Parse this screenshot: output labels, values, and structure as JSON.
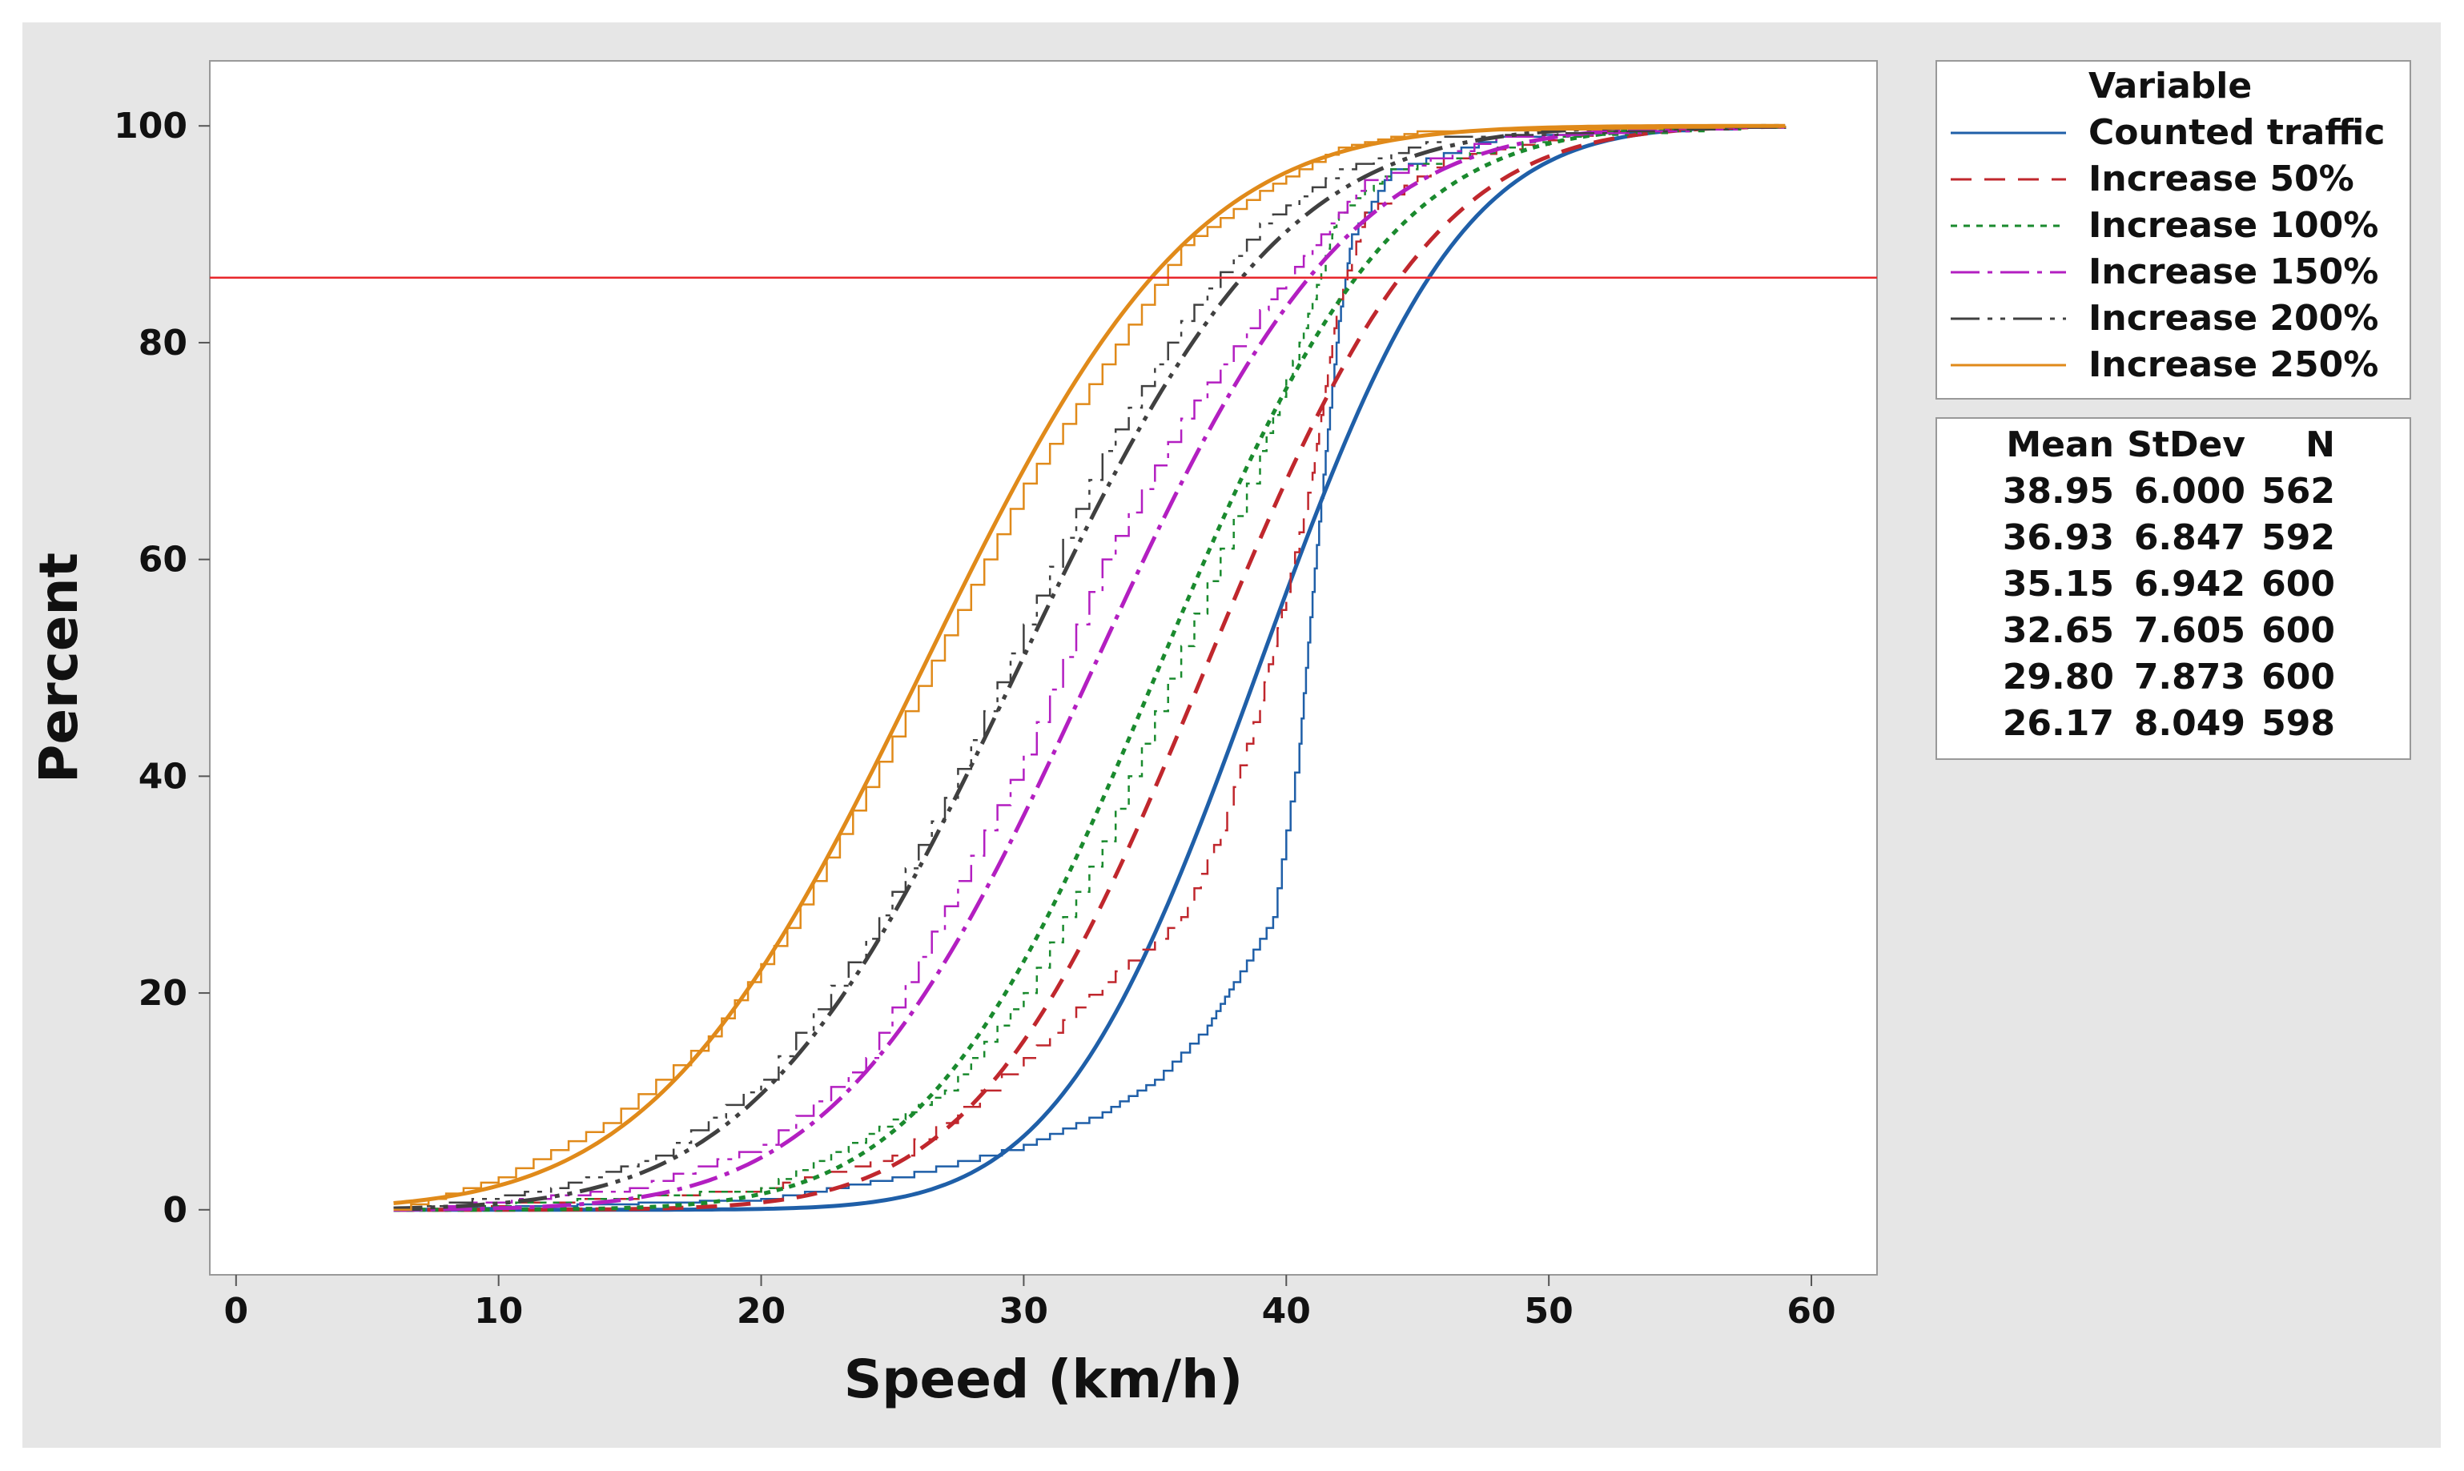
{
  "chart_data": {
    "type": "line",
    "subtype": "empirical cumulative distribution",
    "title": "",
    "xlabel": "Speed (km/h)",
    "ylabel": "Percent",
    "xlim": [
      -1,
      62.5
    ],
    "ylim": [
      -6,
      106
    ],
    "x_ticks": [
      0,
      10,
      20,
      30,
      40,
      50,
      60
    ],
    "y_ticks": [
      0,
      20,
      40,
      60,
      80,
      100
    ],
    "reference_line": {
      "y": 86,
      "color": "#e8262b"
    },
    "legend": {
      "title": "Variable",
      "placement": "top-right, outside plot",
      "entries": [
        "Counted traffic",
        "Increase 50%",
        "Increase 100%",
        "Increase 150%",
        "Increase 200%",
        "Increase 250%"
      ]
    },
    "stats_table": {
      "headers": [
        "Mean",
        "StDev",
        "N"
      ],
      "rows": [
        [
          "38.95",
          "6.000",
          "562"
        ],
        [
          "36.93",
          "6.847",
          "592"
        ],
        [
          "35.15",
          "6.942",
          "600"
        ],
        [
          "32.65",
          "7.605",
          "600"
        ],
        [
          "29.80",
          "7.873",
          "600"
        ],
        [
          "26.17",
          "8.049",
          "598"
        ]
      ]
    },
    "series": [
      {
        "name": "Counted traffic",
        "color": "#1f5fa8",
        "dash": "",
        "mean": 38.95,
        "sd": 6.0,
        "n": 562,
        "empirical_points": [
          [
            6,
            0
          ],
          [
            20,
            1
          ],
          [
            25,
            3
          ],
          [
            30,
            6
          ],
          [
            33,
            9
          ],
          [
            35,
            12
          ],
          [
            37,
            17
          ],
          [
            38,
            21
          ],
          [
            39.5,
            27
          ],
          [
            40.5,
            43
          ],
          [
            41,
            57
          ],
          [
            41.5,
            70
          ],
          [
            42,
            82
          ],
          [
            42.5,
            90
          ],
          [
            44,
            96
          ],
          [
            48,
            99
          ],
          [
            59,
            100
          ]
        ]
      },
      {
        "name": "Increase 50%",
        "color": "#c0272d",
        "dash": "26,16",
        "mean": 36.93,
        "sd": 6.847,
        "n": 592,
        "empirical_points": [
          [
            6,
            0
          ],
          [
            20,
            2
          ],
          [
            25,
            5
          ],
          [
            30,
            14
          ],
          [
            33,
            21
          ],
          [
            36,
            27
          ],
          [
            37.5,
            35
          ],
          [
            39,
            47
          ],
          [
            40,
            57
          ],
          [
            41,
            68
          ],
          [
            41.5,
            76
          ],
          [
            42,
            84
          ],
          [
            43,
            92
          ],
          [
            46,
            97
          ],
          [
            52,
            99.5
          ],
          [
            59,
            100
          ]
        ]
      },
      {
        "name": "Increase 100%",
        "color": "#1a8a2e",
        "dash": "8,8",
        "mean": 35.15,
        "sd": 6.942,
        "n": 600,
        "empirical_points": [
          [
            6,
            0
          ],
          [
            20,
            2
          ],
          [
            24,
            7
          ],
          [
            27,
            11
          ],
          [
            30,
            20
          ],
          [
            33,
            34
          ],
          [
            36,
            52
          ],
          [
            39,
            70
          ],
          [
            40.5,
            80
          ],
          [
            41.5,
            88
          ],
          [
            42,
            92
          ],
          [
            44,
            96
          ],
          [
            50,
            99
          ],
          [
            59,
            100
          ]
        ]
      },
      {
        "name": "Increase 150%",
        "color": "#b31fc1",
        "dash": "36,10,6,10",
        "mean": 32.65,
        "sd": 7.605,
        "n": 600,
        "empirical_points": [
          [
            6,
            0
          ],
          [
            15,
            2
          ],
          [
            20,
            6
          ],
          [
            24,
            14
          ],
          [
            27,
            28
          ],
          [
            30,
            42
          ],
          [
            33,
            60
          ],
          [
            36,
            73
          ],
          [
            39,
            83
          ],
          [
            41,
            89
          ],
          [
            43,
            95
          ],
          [
            48,
            99
          ],
          [
            59,
            100
          ]
        ]
      },
      {
        "name": "Increase 200%",
        "color": "#404040",
        "dash": "36,10,6,10,6,10",
        "mean": 29.8,
        "sd": 7.873,
        "n": 600,
        "empirical_points": [
          [
            6,
            0
          ],
          [
            12,
            2
          ],
          [
            16,
            5
          ],
          [
            20,
            12
          ],
          [
            24,
            25
          ],
          [
            27,
            38
          ],
          [
            30,
            54
          ],
          [
            33,
            70
          ],
          [
            36,
            82
          ],
          [
            39,
            91
          ],
          [
            42,
            96
          ],
          [
            46,
            99
          ],
          [
            59,
            100
          ]
        ]
      },
      {
        "name": "Increase 250%",
        "color": "#e08a1a",
        "dash": "",
        "mean": 26.17,
        "sd": 8.049,
        "n": 598,
        "empirical_points": [
          [
            6,
            0
          ],
          [
            10,
            3
          ],
          [
            14,
            8
          ],
          [
            18,
            16
          ],
          [
            21,
            26
          ],
          [
            24,
            39
          ],
          [
            27,
            53
          ],
          [
            30,
            67
          ],
          [
            33,
            78
          ],
          [
            36,
            89
          ],
          [
            39,
            94
          ],
          [
            42,
            98
          ],
          [
            45,
            99.5
          ],
          [
            59,
            100
          ]
        ]
      }
    ]
  },
  "colors": {
    "outer_background": "#e6e6e6",
    "plot_background": "#ffffff",
    "frame": "#999999",
    "reference_line": "#e8262b"
  }
}
